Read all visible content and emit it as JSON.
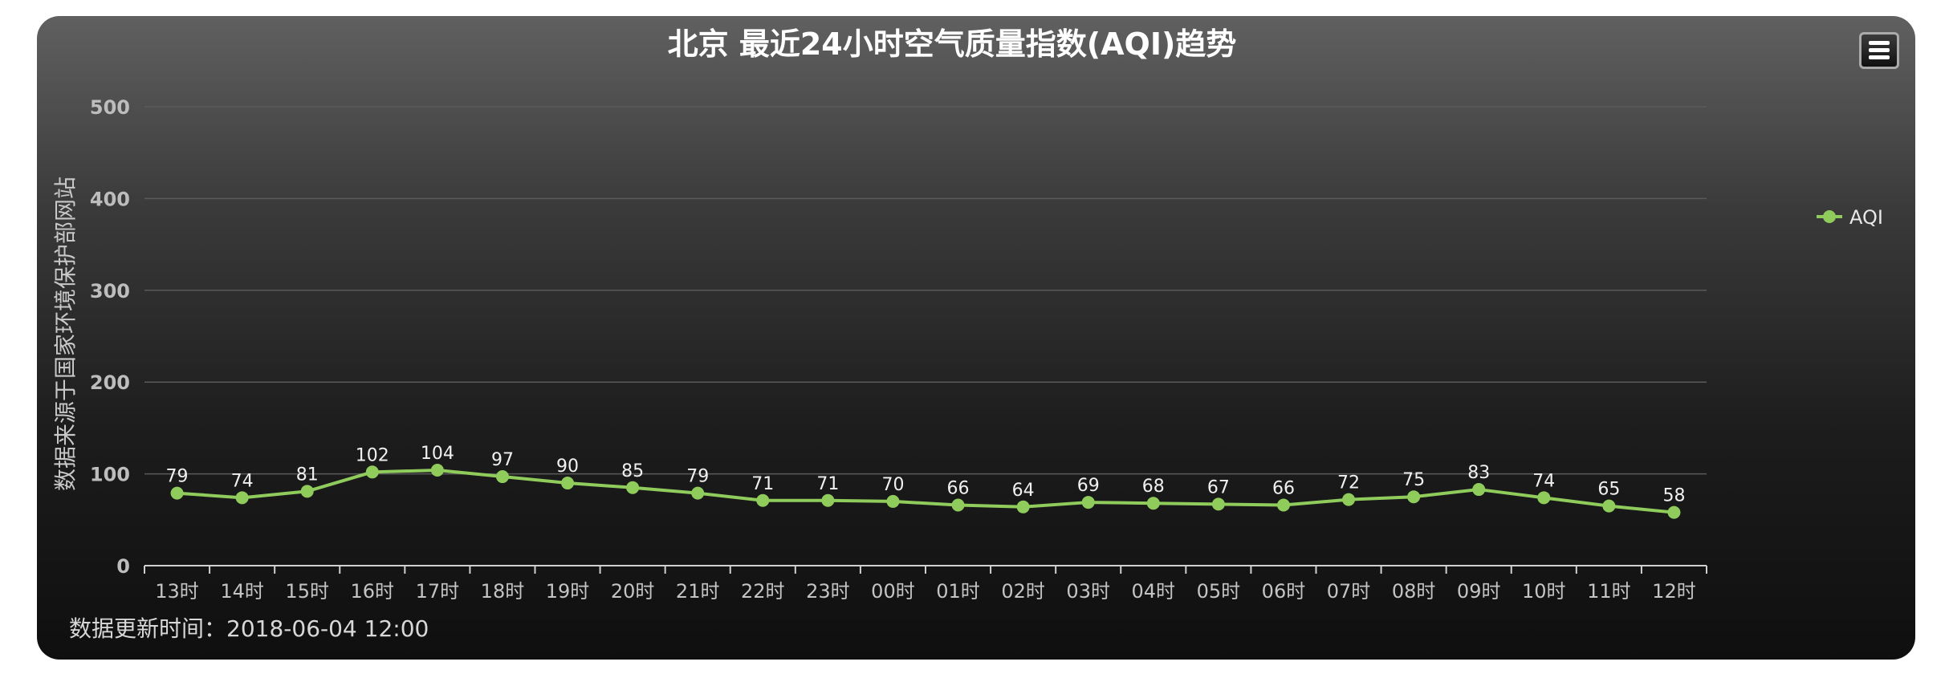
{
  "chart_data": {
    "type": "line",
    "title": "北京 最近24小时空气质量指数(AQI)趋势",
    "ylabel": "数据来源于国家环境保护部网站",
    "xlabel": "",
    "categories": [
      "13时",
      "14时",
      "15时",
      "16时",
      "17时",
      "18时",
      "19时",
      "20时",
      "21时",
      "22时",
      "23时",
      "00时",
      "01时",
      "02时",
      "03时",
      "04时",
      "05时",
      "06时",
      "07时",
      "08时",
      "09时",
      "10时",
      "11时",
      "12时"
    ],
    "series": [
      {
        "name": "AQI",
        "values": [
          79,
          74,
          81,
          102,
          104,
          97,
          90,
          85,
          79,
          71,
          71,
          70,
          66,
          64,
          69,
          68,
          67,
          66,
          72,
          75,
          83,
          74,
          65,
          58
        ]
      }
    ],
    "ylim": [
      0,
      500
    ],
    "yticks": [
      0,
      100,
      200,
      300,
      400,
      500
    ],
    "grid": true,
    "legend_position": "right",
    "data_labels": true,
    "series_color": "#90cc5c"
  },
  "footer": {
    "label": "数据更新时间：",
    "value": "2018-06-04 12:00"
  },
  "menu_icon": "hamburger-menu-icon"
}
